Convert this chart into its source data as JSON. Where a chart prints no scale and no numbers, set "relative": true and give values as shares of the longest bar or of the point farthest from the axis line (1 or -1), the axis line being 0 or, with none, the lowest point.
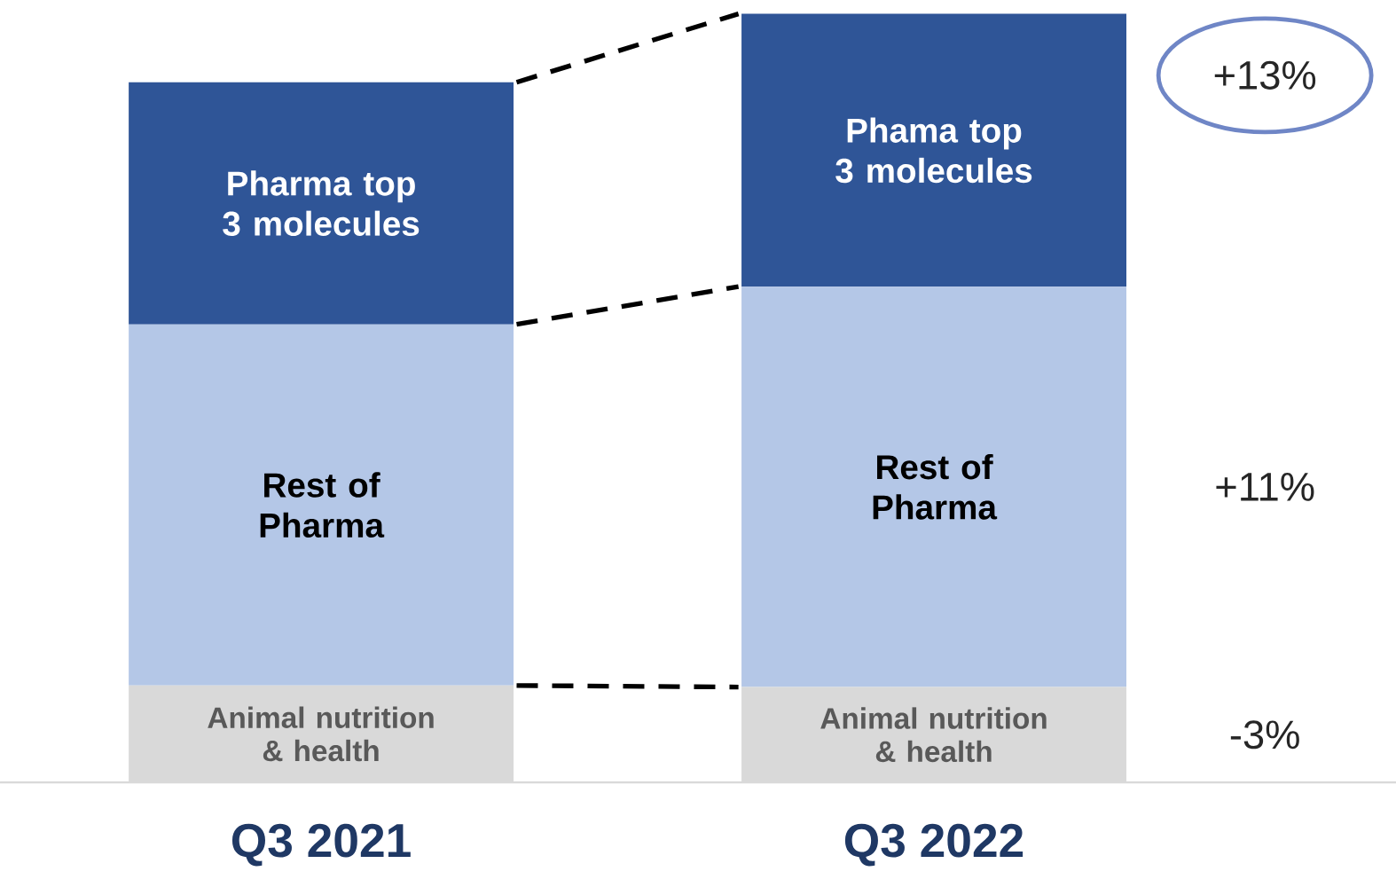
{
  "chart_data": {
    "type": "bar",
    "stacked": true,
    "relative": true,
    "categories": [
      "Q3 2021",
      "Q3 2022"
    ],
    "series": [
      {
        "color": "#d9d9d9",
        "values": [
          0.126,
          0.124
        ]
      },
      {
        "color": "#b4c7e7",
        "values": [
          0.47,
          0.521
        ]
      },
      {
        "color": "#2f5597",
        "values": [
          0.315,
          0.355
        ]
      }
    ],
    "annotations": [
      "Animal nutrition & health",
      "Rest of Pharma",
      "Pharma top 3 molecules",
      "Animal nutrition & health",
      "Rest of Pharma",
      "Phama top 3 molecules",
      "+13%",
      "+11%",
      "-3%"
    ]
  }
}
